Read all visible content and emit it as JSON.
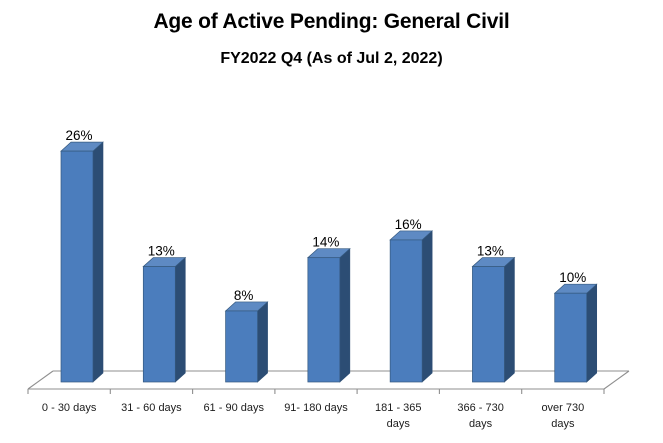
{
  "header": {
    "title": "Age of Active Pending: General Civil",
    "subtitle": "FY2022 Q4 (As of Jul 2, 2022)"
  },
  "chart_data": {
    "type": "bar",
    "style": "3d-column",
    "title": "Age of Active Pending: General Civil",
    "subtitle": "FY2022 Q4 (As of Jul 2, 2022)",
    "categories": [
      "0 - 30 days",
      "31 - 60 days",
      "61 - 90 days",
      "91- 180 days",
      "181 - 365 days",
      "366 - 730 days",
      "over 730 days"
    ],
    "values": [
      26,
      13,
      8,
      14,
      16,
      13,
      10
    ],
    "data_labels": [
      "26%",
      "13%",
      "8%",
      "14%",
      "16%",
      "13%",
      "10%"
    ],
    "xlabel": "",
    "ylabel": "",
    "ylim": [
      0,
      28
    ],
    "grid": "off",
    "legend": "none",
    "value_axis_shown": false,
    "colors": {
      "bar_front": "#4b7dbd",
      "bar_top": "#5e8ac3",
      "bar_side": "#2c4d74",
      "bar_outline": "#35597f",
      "axis_line": "#8f8f8f",
      "label_text": "#000000",
      "tick_label_text": "#1c1c1c",
      "background": "#ffffff"
    }
  }
}
